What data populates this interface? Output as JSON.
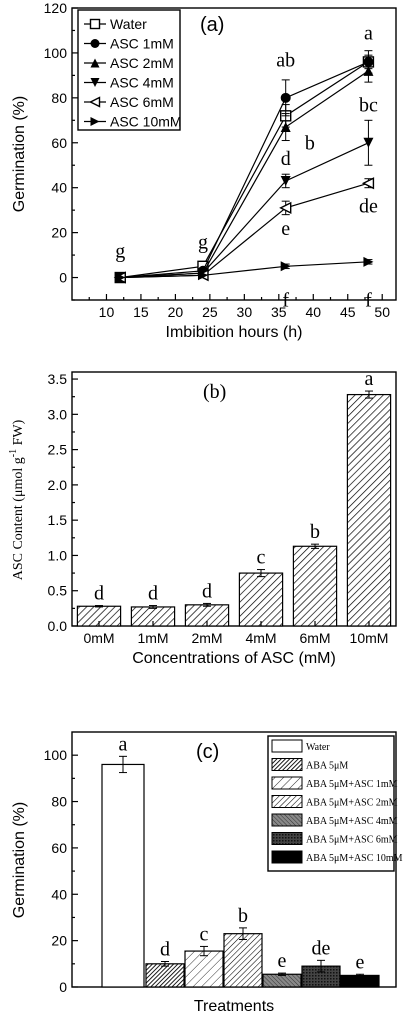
{
  "chart_data": [
    {
      "type": "line",
      "panel_label": "(a)",
      "xlabel": "Imbibition hours (h)",
      "ylabel": "Germination (%)",
      "xlim": [
        5,
        52
      ],
      "ylim": [
        -10,
        120
      ],
      "xticks": [
        10,
        15,
        20,
        25,
        30,
        35,
        40,
        45,
        50
      ],
      "yticks": [
        0,
        20,
        40,
        60,
        80,
        100,
        120
      ],
      "legend_position": "top-left",
      "x": [
        12,
        24,
        36,
        48
      ],
      "series": [
        {
          "name": "Water",
          "marker": "open-square",
          "values": [
            0,
            5,
            72,
            96
          ],
          "errors": [
            0,
            1,
            5,
            3
          ]
        },
        {
          "name": "ASC 1mM",
          "marker": "filled-circle",
          "values": [
            0,
            3,
            80,
            96
          ],
          "errors": [
            0,
            1,
            8,
            5
          ]
        },
        {
          "name": "ASC 2mM",
          "marker": "filled-triangle-up",
          "values": [
            0,
            2,
            67,
            92
          ],
          "errors": [
            0,
            1,
            6,
            5
          ]
        },
        {
          "name": "ASC 4mM",
          "marker": "filled-triangle-down",
          "values": [
            0,
            2,
            43,
            60
          ],
          "errors": [
            0,
            1,
            3,
            10
          ]
        },
        {
          "name": "ASC 6mM",
          "marker": "open-triangle-left",
          "values": [
            0,
            1,
            31,
            42
          ],
          "errors": [
            0,
            1,
            3,
            2
          ]
        },
        {
          "name": "ASC 10mM",
          "marker": "filled-triangle-right",
          "values": [
            0,
            1,
            5,
            7
          ],
          "errors": [
            0,
            0,
            1,
            1
          ]
        }
      ],
      "annotations": [
        {
          "text": "g",
          "x": 12,
          "y": 9
        },
        {
          "text": "g",
          "x": 24,
          "y": 13
        },
        {
          "text": "ab",
          "x": 36,
          "y": 94
        },
        {
          "text": "b",
          "x": 39.5,
          "y": 57
        },
        {
          "text": "d",
          "x": 36,
          "y": 50
        },
        {
          "text": "e",
          "x": 36,
          "y": 19
        },
        {
          "text": "f",
          "x": 36,
          "y": -13
        },
        {
          "text": "a",
          "x": 48,
          "y": 106
        },
        {
          "text": "bc",
          "x": 48,
          "y": 74
        },
        {
          "text": "de",
          "x": 48,
          "y": 29
        },
        {
          "text": "f",
          "x": 48,
          "y": -13
        }
      ]
    },
    {
      "type": "bar",
      "panel_label": "(b)",
      "xlabel": "Concentrations of ASC (mM)",
      "ylabel_main": "ASC  Content (μmol g",
      "ylabel_sup": "-1",
      "ylabel_tail": " FW)",
      "ylim": [
        0,
        3.6
      ],
      "yticks": [
        "0.0",
        "0.5",
        "1.0",
        "1.5",
        "2.0",
        "2.5",
        "3.0",
        "3.5"
      ],
      "categories": [
        "0mM",
        "1mM",
        "2mM",
        "4mM",
        "6mM",
        "10mM"
      ],
      "values": [
        0.28,
        0.27,
        0.3,
        0.75,
        1.13,
        3.28
      ],
      "errors": [
        0.01,
        0.02,
        0.02,
        0.05,
        0.03,
        0.05
      ],
      "letters": [
        "d",
        "d",
        "d",
        "c",
        "b",
        "a"
      ]
    },
    {
      "type": "bar",
      "panel_label": "(c)",
      "xlabel": "Treatments",
      "ylabel": "Germination (%)",
      "ylim": [
        0,
        110
      ],
      "yticks": [
        0,
        20,
        40,
        60,
        80,
        100
      ],
      "legend_position": "top-right",
      "categories": [
        "Water",
        "ABA 5μM",
        "ABA 5μM+ASC 1mM",
        "ABA 5μM+ASC 2mM",
        "ABA 5μM+ASC 4mM",
        "ABA 5μM+ASC 6mM",
        "ABA 5μM+ASC 10mM"
      ],
      "values": [
        96,
        10,
        15.5,
        23,
        5.5,
        9,
        5
      ],
      "errors": [
        3.5,
        1,
        2,
        2.5,
        0.5,
        2.5,
        0.5
      ],
      "letters": [
        "a",
        "d",
        "c",
        "b",
        "e",
        "de",
        "e"
      ],
      "fills": [
        "white",
        "dense-hatch",
        "light-hatch",
        "mid-hatch",
        "gray-hatch",
        "crosshatch",
        "black"
      ]
    }
  ]
}
